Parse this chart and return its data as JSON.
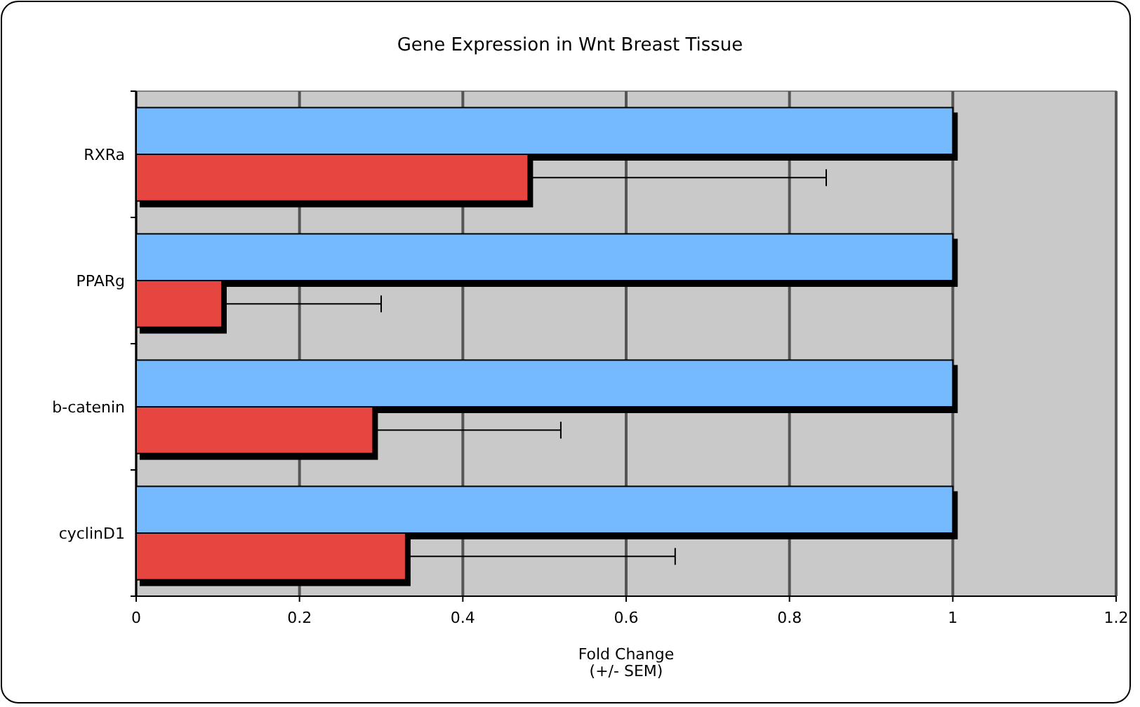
{
  "chart_data": {
    "type": "bar",
    "orientation": "horizontal",
    "title": "Gene Expression in Wnt Breast Tissue",
    "xlabel": "Fold Change\n(+/- SEM)",
    "categories": [
      "RXRa",
      "PPARg",
      "b-catenin",
      "cyclinD1"
    ],
    "series": [
      {
        "color": "#75b9ff",
        "values": [
          1,
          1,
          1,
          1
        ]
      },
      {
        "color": "#e64540",
        "values": [
          0.48,
          0.105,
          0.29,
          0.33
        ],
        "errors": [
          [
            0.48,
            0.845
          ],
          [
            0.105,
            0.3
          ],
          [
            0.29,
            0.52
          ],
          [
            0.33,
            0.66
          ]
        ]
      }
    ],
    "xlim": [
      0,
      1.2
    ],
    "xticks": [
      0,
      0.2,
      0.4,
      0.6,
      0.8,
      1,
      1.2
    ],
    "grid": "x"
  }
}
